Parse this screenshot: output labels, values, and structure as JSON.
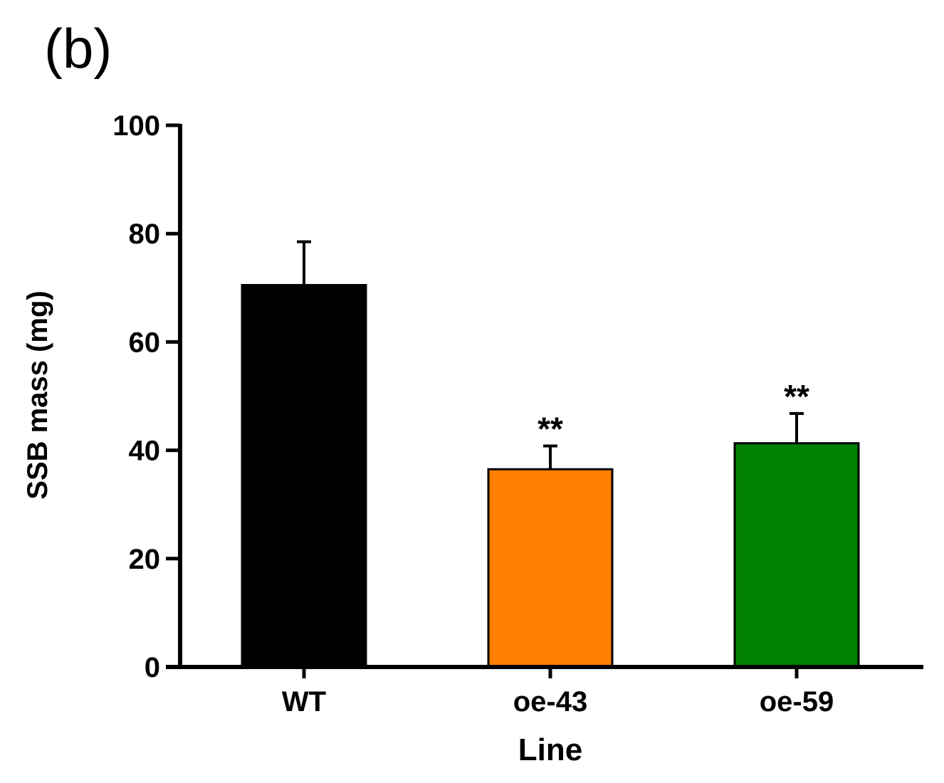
{
  "panel_label": "(b)",
  "chart_data": {
    "type": "bar",
    "title": "",
    "xlabel": "Line",
    "ylabel": "SSB mass (mg)",
    "ylim": [
      0,
      100
    ],
    "yticks": [
      0,
      20,
      40,
      60,
      80,
      100
    ],
    "categories": [
      "WT",
      "oe-43",
      "oe-59"
    ],
    "values": [
      70.5,
      36.5,
      41.3
    ],
    "errors": [
      8.0,
      4.3,
      5.5
    ],
    "colors": [
      "#000000",
      "#ff8000",
      "#008000"
    ],
    "annotations": [
      "",
      "**",
      "**"
    ],
    "grid": false,
    "legend": "none"
  }
}
